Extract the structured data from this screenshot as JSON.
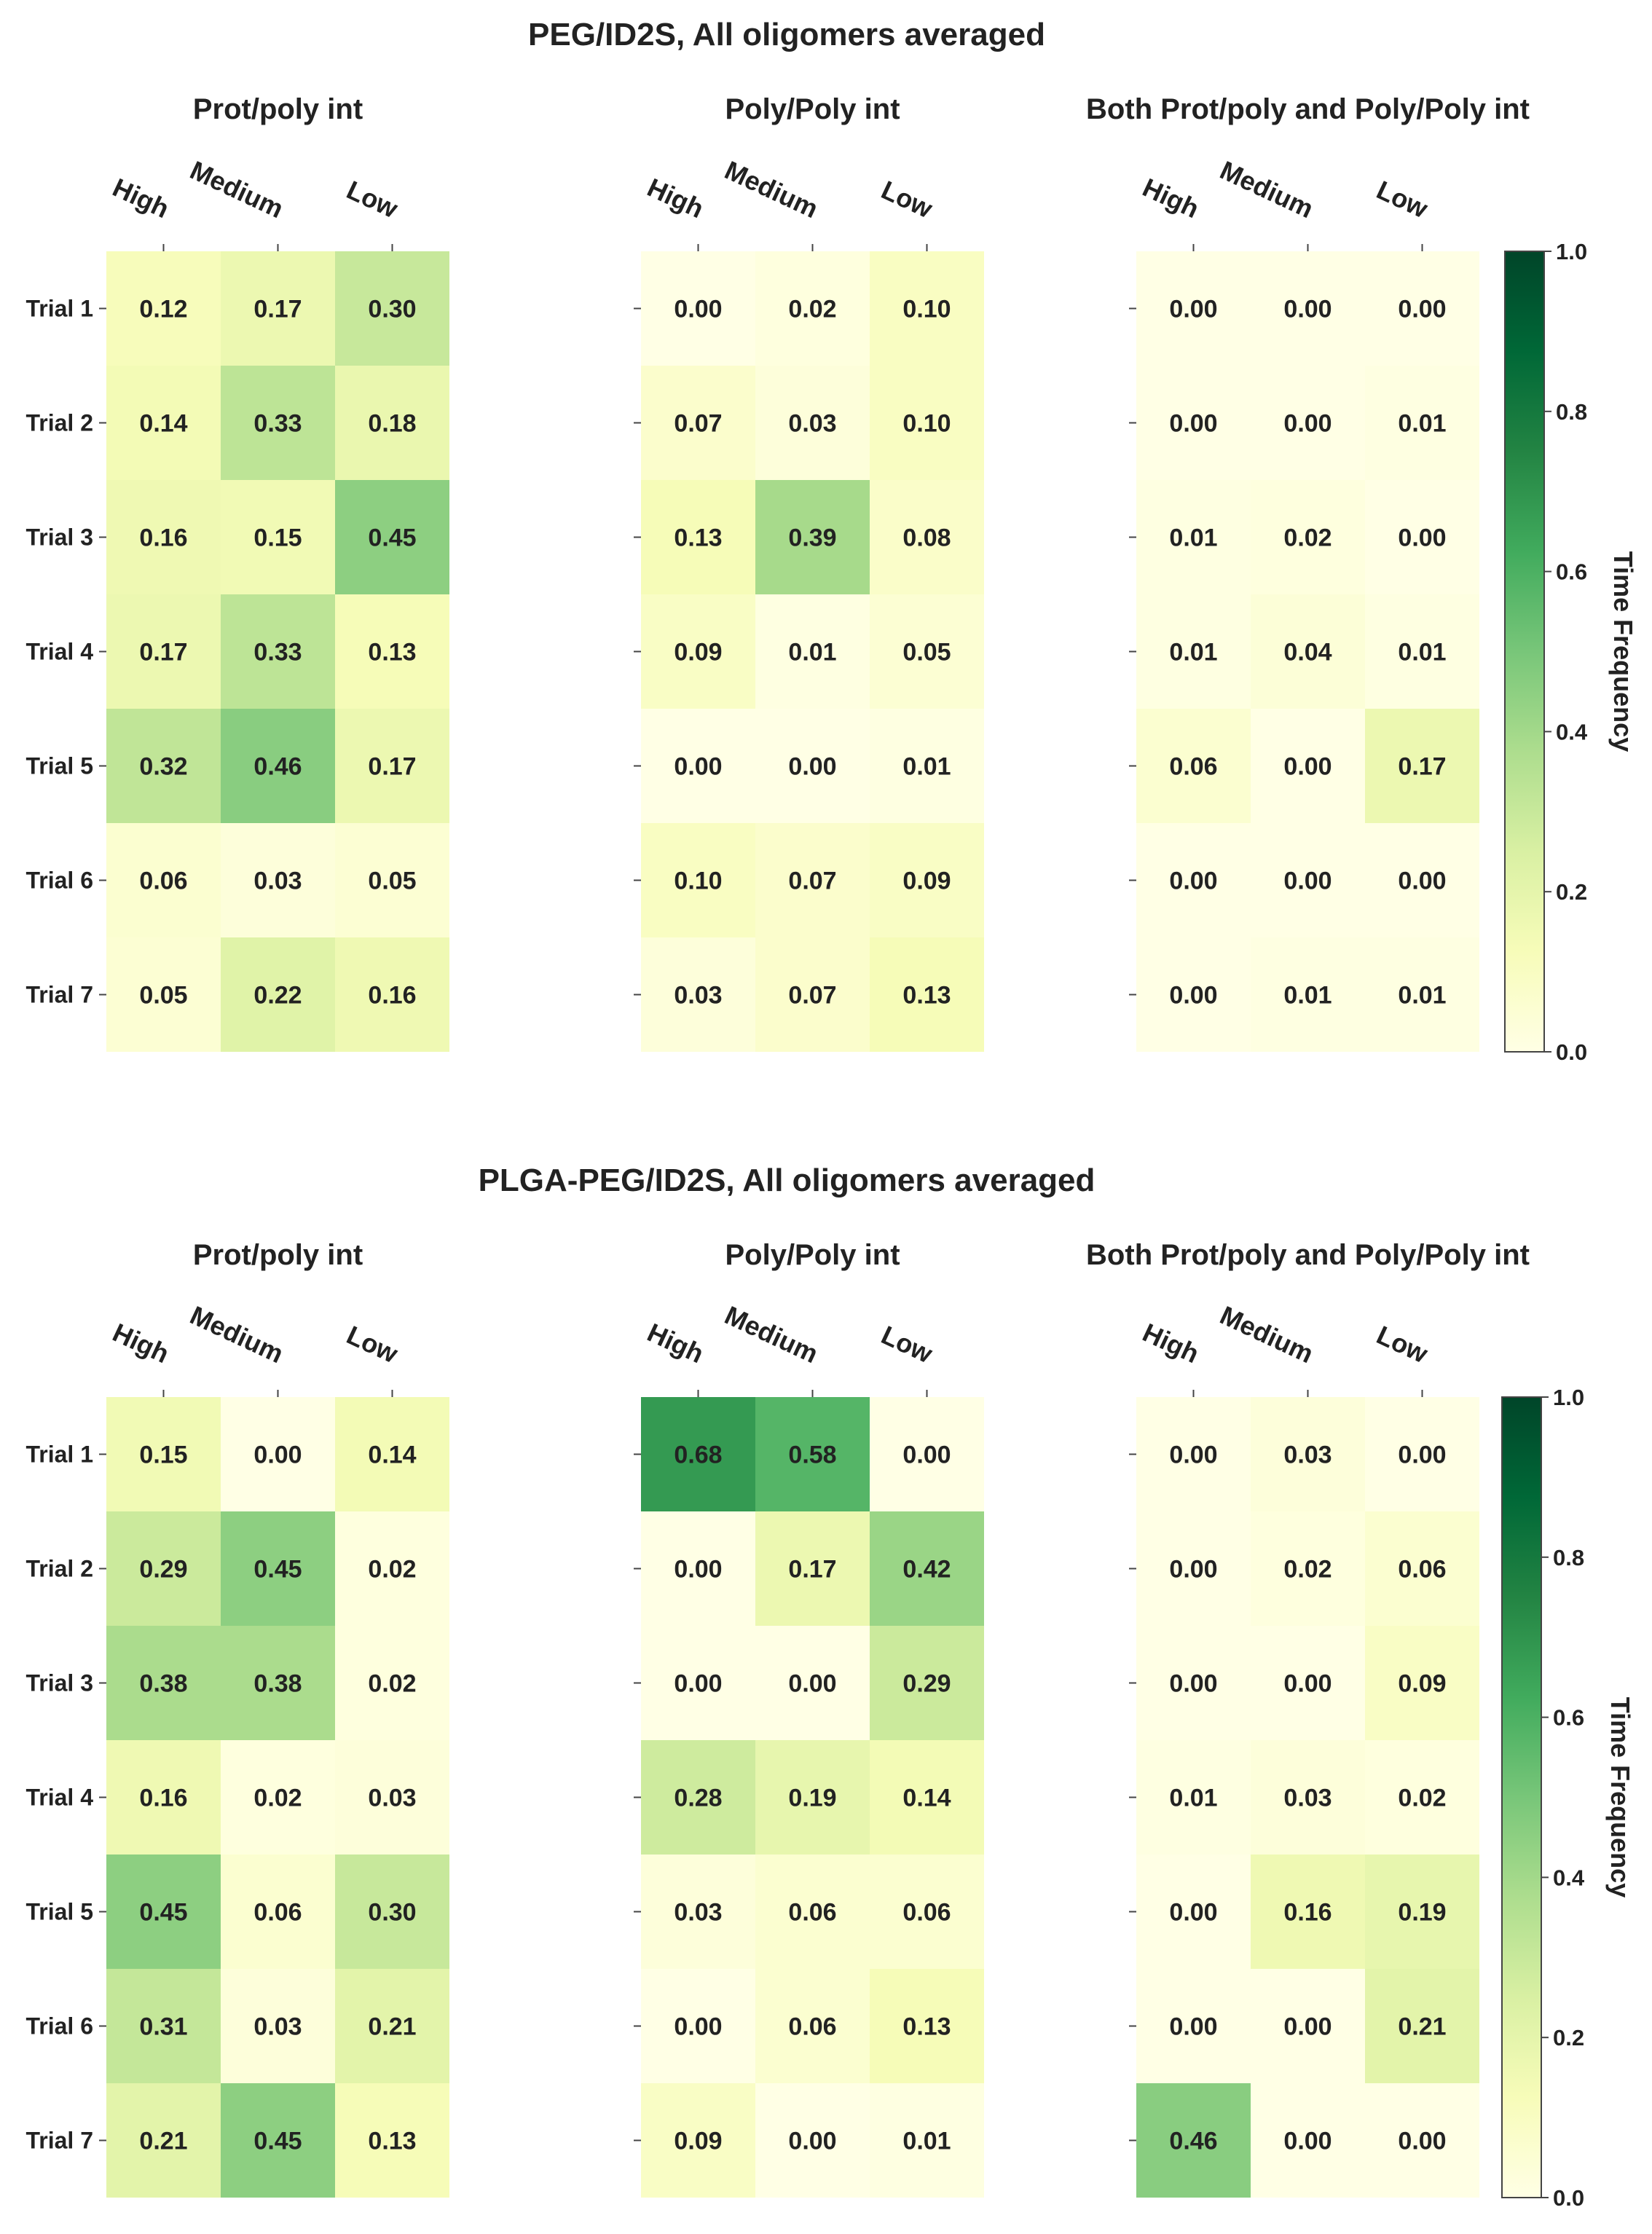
{
  "chart_data": [
    {
      "type": "heatmap",
      "title": "PEG/ID2S, All oligomers averaged",
      "columns": [
        "High",
        "Medium",
        "Low"
      ],
      "rows": [
        "Trial 1",
        "Trial 2",
        "Trial 3",
        "Trial 4",
        "Trial 5",
        "Trial 6",
        "Trial 7"
      ],
      "panels": [
        {
          "name": "Prot/poly int",
          "values": [
            [
              0.12,
              0.17,
              0.3
            ],
            [
              0.14,
              0.33,
              0.18
            ],
            [
              0.16,
              0.15,
              0.45
            ],
            [
              0.17,
              0.33,
              0.13
            ],
            [
              0.32,
              0.46,
              0.17
            ],
            [
              0.06,
              0.03,
              0.05
            ],
            [
              0.05,
              0.22,
              0.16
            ]
          ]
        },
        {
          "name": "Poly/Poly int",
          "values": [
            [
              0.0,
              0.02,
              0.1
            ],
            [
              0.07,
              0.03,
              0.1
            ],
            [
              0.13,
              0.39,
              0.08
            ],
            [
              0.09,
              0.01,
              0.05
            ],
            [
              0.0,
              0.0,
              0.01
            ],
            [
              0.1,
              0.07,
              0.09
            ],
            [
              0.03,
              0.07,
              0.13
            ]
          ]
        },
        {
          "name": "Both Prot/poly and Poly/Poly int",
          "values": [
            [
              0.0,
              0.0,
              0.0
            ],
            [
              0.0,
              0.0,
              0.01
            ],
            [
              0.01,
              0.02,
              0.0
            ],
            [
              0.01,
              0.04,
              0.01
            ],
            [
              0.06,
              0.0,
              0.17
            ],
            [
              0.0,
              0.0,
              0.0
            ],
            [
              0.0,
              0.01,
              0.01
            ]
          ]
        }
      ],
      "colorbar": {
        "label": "Time Frequency",
        "range": [
          0.0,
          1.0
        ],
        "ticks": [
          "0.0",
          "0.2",
          "0.4",
          "0.6",
          "0.8",
          "1.0"
        ],
        "colormap": "YlGn"
      }
    },
    {
      "type": "heatmap",
      "title": "PLGA-PEG/ID2S, All oligomers averaged",
      "columns": [
        "High",
        "Medium",
        "Low"
      ],
      "rows": [
        "Trial 1",
        "Trial 2",
        "Trial 3",
        "Trial 4",
        "Trial 5",
        "Trial 6",
        "Trial 7"
      ],
      "panels": [
        {
          "name": "Prot/poly int",
          "values": [
            [
              0.15,
              0.0,
              0.14
            ],
            [
              0.29,
              0.45,
              0.02
            ],
            [
              0.38,
              0.38,
              0.02
            ],
            [
              0.16,
              0.02,
              0.03
            ],
            [
              0.45,
              0.06,
              0.3
            ],
            [
              0.31,
              0.03,
              0.21
            ],
            [
              0.21,
              0.45,
              0.13
            ]
          ]
        },
        {
          "name": "Poly/Poly int",
          "values": [
            [
              0.68,
              0.58,
              0.0
            ],
            [
              0.0,
              0.17,
              0.42
            ],
            [
              0.0,
              0.0,
              0.29
            ],
            [
              0.28,
              0.19,
              0.14
            ],
            [
              0.03,
              0.06,
              0.06
            ],
            [
              0.0,
              0.06,
              0.13
            ],
            [
              0.09,
              0.0,
              0.01
            ]
          ]
        },
        {
          "name": "Both Prot/poly and Poly/Poly int",
          "values": [
            [
              0.0,
              0.03,
              0.0
            ],
            [
              0.0,
              0.02,
              0.06
            ],
            [
              0.0,
              0.0,
              0.09
            ],
            [
              0.01,
              0.03,
              0.02
            ],
            [
              0.0,
              0.16,
              0.19
            ],
            [
              0.0,
              0.0,
              0.21
            ],
            [
              0.46,
              0.0,
              0.0
            ]
          ]
        }
      ],
      "colorbar": {
        "label": "Time Frequency",
        "range": [
          0.0,
          1.0
        ],
        "ticks": [
          "0.0",
          "0.2",
          "0.4",
          "0.6",
          "0.8",
          "1.0"
        ],
        "colormap": "YlGn"
      }
    }
  ]
}
